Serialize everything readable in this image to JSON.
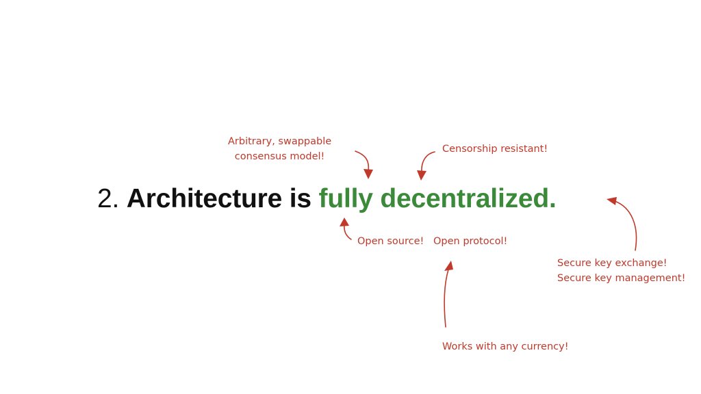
{
  "headline": {
    "number": "2.",
    "lead": "Architecture is",
    "accent": "fully decentralized.",
    "accent_color": "#3a8a3a"
  },
  "annotations": {
    "color": "#c0392b",
    "consensus": [
      "Arbitrary, swappable",
      "consensus model!"
    ],
    "censorship": "Censorship resistant!",
    "open_source": "Open source!",
    "open_protocol": "Open protocol!",
    "keys": [
      "Secure key exchange!",
      "Secure key management!"
    ],
    "currency": "Works with any currency!"
  }
}
